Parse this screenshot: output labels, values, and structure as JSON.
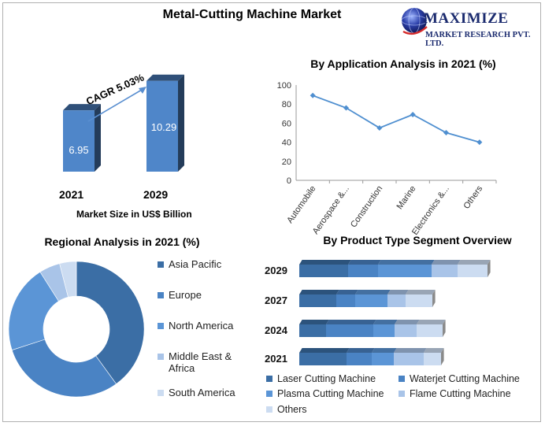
{
  "title": "Metal-Cutting Machine Market",
  "logo": {
    "brand": "MAXIMIZE",
    "sub": "MARKET RESEARCH PVT. LTD."
  },
  "market_size": {
    "cagr_label": "CAGR 5.03%",
    "caption": "Market Size in US$ Billion",
    "years": [
      "2021",
      "2029"
    ],
    "value_labels": [
      "6.95",
      "10.29"
    ],
    "values": [
      6.95,
      10.29
    ],
    "bar_color": "#4f86c9"
  },
  "application": {
    "title": "By Application Analysis in 2021 (%)"
  },
  "regional": {
    "title": "Regional Analysis in 2021 (%)"
  },
  "product": {
    "title": "By Product Type Segment Overview"
  },
  "chart_data": [
    {
      "type": "bar",
      "title": "Market Size in US$ Billion",
      "categories": [
        "2021",
        "2029"
      ],
      "values": [
        6.95,
        10.29
      ],
      "annotation": "CAGR 5.03%"
    },
    {
      "type": "line",
      "title": "By Application Analysis in 2021 (%)",
      "categories": [
        "Automobile",
        "Aerospace &...",
        "Construction",
        "Marine",
        "Electronics &...",
        "Others"
      ],
      "values": [
        89,
        76,
        55,
        69,
        50,
        40
      ],
      "ylim": [
        0,
        100
      ],
      "yticks": [
        "0",
        "20",
        "40",
        "60",
        "80",
        "100"
      ],
      "color": "#4f8fd0"
    },
    {
      "type": "pie",
      "title": "Regional Analysis in 2021 (%)",
      "labels": [
        "Asia Pacific",
        "Europe",
        "North America",
        "Middle East & Africa",
        "South America"
      ],
      "values": [
        40,
        30,
        21,
        5,
        4
      ],
      "colors": [
        "#3b6ea5",
        "#4a83c4",
        "#5b95d6",
        "#a9c4e8",
        "#ccdcf1"
      ]
    },
    {
      "type": "bar",
      "orientation": "horizontal-stacked",
      "title": "By Product Type Segment Overview",
      "categories": [
        "2029",
        "2027",
        "2024",
        "2021"
      ],
      "series": [
        {
          "name": "Laser Cutting Machine",
          "values": [
            62,
            47,
            34,
            60
          ],
          "color": "#3b6ea5"
        },
        {
          "name": "Waterjet Cutting Machine",
          "values": [
            38,
            24,
            60,
            32
          ],
          "color": "#4a83c4"
        },
        {
          "name": "Plasma Cutting Machine",
          "values": [
            68,
            41,
            27,
            28
          ],
          "color": "#5b95d6"
        },
        {
          "name": "Flame Cutting Machine",
          "values": [
            33,
            23,
            28,
            38
          ],
          "color": "#a9c4e8"
        },
        {
          "name": "Others",
          "values": [
            38,
            34,
            33,
            22
          ],
          "color": "#ccdcf1"
        }
      ]
    }
  ]
}
